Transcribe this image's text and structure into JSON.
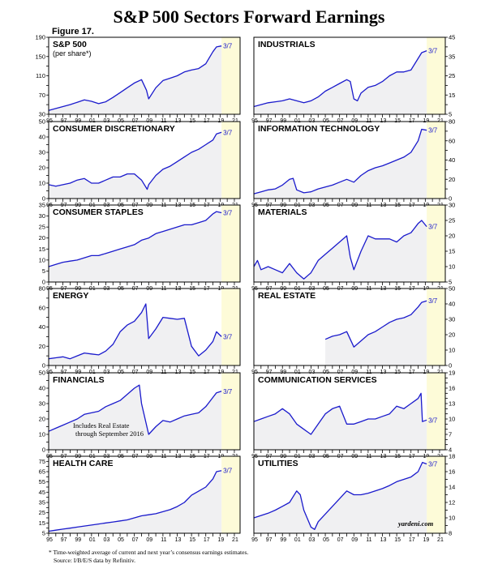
{
  "title": "S&P 500 Sectors Forward Earnings",
  "figure": "Figure 17.",
  "footnote": "* Time-weighted average of current and next year’s consensus earnings estimates.",
  "source": "Source: I/B/E/S data by Refinitiv.",
  "credit": "yardeni.com",
  "colors": {
    "line": "#1a1acc",
    "fill": "#f0f0f2",
    "forecast_band": "#fdfbd8"
  },
  "chart_data": [
    {
      "type": "line",
      "title": "S&P 500",
      "subtitle": "(per share*)",
      "end_label": "3/7",
      "axis_side": "left",
      "ylim": [
        30,
        190
      ],
      "yticks": [
        30,
        50,
        70,
        90,
        110,
        130,
        150,
        170,
        190
      ],
      "ytick_labels": [
        "30",
        "",
        "70",
        "",
        "110",
        "",
        "150",
        "",
        "190"
      ],
      "x": [
        1995,
        1996,
        1997,
        1998,
        1999,
        2000,
        2001,
        2002,
        2003,
        2004,
        2005,
        2006,
        2007,
        2008,
        2008.7,
        2009,
        2010,
        2011,
        2012,
        2013,
        2014,
        2015,
        2016,
        2017,
        2018,
        2018.5,
        2019.2
      ],
      "values": [
        38,
        42,
        46,
        50,
        55,
        60,
        57,
        52,
        56,
        65,
        75,
        85,
        95,
        102,
        80,
        62,
        85,
        100,
        105,
        110,
        118,
        122,
        125,
        135,
        160,
        170,
        172
      ]
    },
    {
      "type": "line",
      "title": "INDUSTRIALS",
      "end_label": "3/7",
      "axis_side": "right",
      "ylim": [
        5,
        45
      ],
      "yticks": [
        5,
        10,
        15,
        20,
        25,
        30,
        35,
        40,
        45
      ],
      "ytick_labels": [
        "5",
        "",
        "15",
        "",
        "25",
        "",
        "35",
        "",
        "45"
      ],
      "x": [
        1995,
        1996,
        1997,
        1998,
        1999,
        2000,
        2001,
        2002,
        2003,
        2004,
        2005,
        2006,
        2007,
        2008,
        2008.5,
        2009,
        2009.5,
        2010,
        2011,
        2012,
        2013,
        2014,
        2015,
        2016,
        2017,
        2018,
        2018.5,
        2019.2
      ],
      "values": [
        9,
        10,
        11,
        11.5,
        12,
        13,
        12,
        11,
        12,
        14,
        17,
        19,
        21,
        23,
        22,
        13,
        12,
        16,
        19,
        20,
        22,
        25,
        27,
        27,
        28,
        34,
        37,
        38
      ]
    },
    {
      "type": "line",
      "title": "CONSUMER DISCRETIONARY",
      "end_label": "3/7",
      "axis_side": "left",
      "ylim": [
        0,
        50
      ],
      "yticks": [
        0,
        5,
        10,
        15,
        20,
        25,
        30,
        35,
        40,
        45,
        50
      ],
      "ytick_labels": [
        "0",
        "",
        "10",
        "",
        "20",
        "",
        "30",
        "",
        "40",
        "",
        "50"
      ],
      "x": [
        1995,
        1996,
        1997,
        1998,
        1999,
        2000,
        2001,
        2002,
        2003,
        2004,
        2005,
        2006,
        2007,
        2008,
        2008.8,
        2009,
        2010,
        2011,
        2012,
        2013,
        2014,
        2015,
        2016,
        2017,
        2018,
        2018.5,
        2019.2
      ],
      "values": [
        9,
        8,
        9,
        10,
        12,
        13,
        10,
        10,
        12,
        14,
        14,
        16,
        16,
        12,
        6,
        9,
        15,
        19,
        21,
        24,
        27,
        30,
        32,
        35,
        38,
        42,
        43
      ]
    },
    {
      "type": "line",
      "title": "INFORMATION TECHNOLOGY",
      "end_label": "3/7",
      "axis_side": "right",
      "ylim": [
        0,
        80
      ],
      "yticks": [
        0,
        10,
        20,
        30,
        40,
        50,
        60,
        70,
        80
      ],
      "ytick_labels": [
        "0",
        "",
        "20",
        "",
        "40",
        "",
        "60",
        "",
        "80"
      ],
      "x": [
        1995,
        1996,
        1997,
        1998,
        1999,
        2000,
        2000.5,
        2001,
        2002,
        2003,
        2004,
        2005,
        2006,
        2007,
        2008,
        2009,
        2010,
        2011,
        2012,
        2013,
        2014,
        2015,
        2016,
        2017,
        2018,
        2018.5,
        2019.2
      ],
      "values": [
        5,
        7,
        9,
        10,
        14,
        20,
        21,
        9,
        6,
        7,
        10,
        12,
        14,
        17,
        20,
        17,
        24,
        29,
        32,
        34,
        37,
        40,
        43,
        48,
        60,
        72,
        71
      ]
    },
    {
      "type": "line",
      "title": "CONSUMER STAPLES",
      "end_label": "3/7",
      "axis_side": "left",
      "ylim": [
        0,
        35
      ],
      "yticks": [
        0,
        5,
        10,
        15,
        20,
        25,
        30,
        35
      ],
      "ytick_labels": [
        "0",
        "5",
        "10",
        "15",
        "20",
        "25",
        "30",
        "35"
      ],
      "x": [
        1995,
        1996,
        1997,
        1998,
        1999,
        2000,
        2001,
        2002,
        2003,
        2004,
        2005,
        2006,
        2007,
        2008,
        2009,
        2010,
        2011,
        2012,
        2013,
        2014,
        2015,
        2016,
        2017,
        2018,
        2018.5,
        2019.2
      ],
      "values": [
        7,
        8,
        9,
        9.5,
        10,
        11,
        12,
        12,
        13,
        14,
        15,
        16,
        17,
        19,
        20,
        22,
        23,
        24,
        25,
        26,
        26,
        27,
        28,
        31,
        32,
        31.5
      ]
    },
    {
      "type": "line",
      "title": "MATERIALS",
      "end_label": "3/7",
      "axis_side": "right",
      "ylim": [
        5,
        30
      ],
      "yticks": [
        5,
        10,
        15,
        20,
        25,
        30
      ],
      "ytick_labels": [
        "5",
        "10",
        "15",
        "20",
        "25",
        "30"
      ],
      "x": [
        1995,
        1995.5,
        1996,
        1997,
        1998,
        1999,
        2000,
        2001,
        2002,
        2003,
        2004,
        2005,
        2006,
        2007,
        2008,
        2008.5,
        2009,
        2010,
        2011,
        2012,
        2013,
        2014,
        2015,
        2016,
        2017,
        2018,
        2018.5,
        2019.2
      ],
      "values": [
        10,
        12,
        9,
        10,
        9,
        8,
        11,
        8,
        6,
        8,
        12,
        14,
        16,
        18,
        20,
        13,
        9,
        15,
        20,
        19,
        19,
        19,
        18,
        20,
        21,
        24,
        25,
        23
      ]
    },
    {
      "type": "line",
      "title": "ENERGY",
      "end_label": "3/7",
      "axis_side": "left",
      "ylim": [
        0,
        80
      ],
      "yticks": [
        0,
        10,
        20,
        30,
        40,
        50,
        60,
        70,
        80
      ],
      "ytick_labels": [
        "0",
        "",
        "20",
        "",
        "40",
        "",
        "60",
        "",
        "80"
      ],
      "x": [
        1995,
        1996,
        1997,
        1998,
        1999,
        2000,
        2001,
        2002,
        2003,
        2004,
        2005,
        2006,
        2007,
        2008,
        2008.6,
        2009,
        2010,
        2011,
        2012,
        2013,
        2014,
        2015,
        2016,
        2017,
        2018,
        2018.5,
        2019.2
      ],
      "values": [
        7,
        8,
        9,
        7,
        10,
        13,
        12,
        11,
        15,
        22,
        35,
        42,
        46,
        55,
        64,
        28,
        38,
        50,
        49,
        48,
        49,
        20,
        10,
        16,
        25,
        35,
        30
      ]
    },
    {
      "type": "line",
      "title": "REAL ESTATE",
      "end_label": "3/7",
      "axis_side": "right",
      "ylim": [
        0,
        50
      ],
      "yticks": [
        0,
        10,
        20,
        30,
        40,
        50
      ],
      "ytick_labels": [
        "0",
        "10",
        "20",
        "30",
        "40",
        "50"
      ],
      "x": [
        2005,
        2006,
        2007,
        2008,
        2009,
        2010,
        2011,
        2012,
        2013,
        2014,
        2015,
        2016,
        2017,
        2018,
        2018.5,
        2019.2
      ],
      "values": [
        17,
        19,
        20,
        22,
        12,
        16,
        20,
        22,
        25,
        28,
        30,
        31,
        33,
        38,
        41,
        42
      ]
    },
    {
      "type": "line",
      "title": "FINANCIALS",
      "end_label": "3/7",
      "axis_side": "left",
      "annotation": [
        "Includes Real Estate",
        "through September 2016"
      ],
      "ylim": [
        0,
        50
      ],
      "yticks": [
        0,
        5,
        10,
        15,
        20,
        25,
        30,
        35,
        40,
        45,
        50
      ],
      "ytick_labels": [
        "0",
        "",
        "10",
        "",
        "20",
        "",
        "30",
        "",
        "40",
        "",
        "50"
      ],
      "x": [
        1995,
        1996,
        1997,
        1998,
        1999,
        2000,
        2001,
        2002,
        2003,
        2004,
        2005,
        2006,
        2007,
        2007.7,
        2008,
        2009,
        2010,
        2011,
        2012,
        2013,
        2014,
        2015,
        2016,
        2017,
        2018,
        2018.5,
        2019.2
      ],
      "values": [
        12,
        14,
        16,
        18,
        20,
        23,
        24,
        25,
        28,
        30,
        32,
        36,
        40,
        42,
        30,
        10,
        15,
        19,
        18,
        20,
        22,
        23,
        24,
        28,
        34,
        37,
        38
      ]
    },
    {
      "type": "line",
      "title": "COMMUNICATION SERVICES",
      "end_label": "3/7",
      "axis_side": "right",
      "ylim": [
        4,
        19
      ],
      "yticks": [
        4,
        5,
        6,
        7,
        8,
        9,
        10,
        11,
        12,
        13,
        14,
        15,
        16,
        17,
        18,
        19
      ],
      "ytick_labels": [
        "4",
        "",
        "",
        "7",
        "",
        "",
        "10",
        "",
        "",
        "13",
        "",
        "",
        "16",
        "",
        "",
        "19"
      ],
      "x": [
        1995,
        1996,
        1997,
        1998,
        1999,
        2000,
        2001,
        2002,
        2003,
        2004,
        2005,
        2006,
        2007,
        2008,
        2009,
        2010,
        2011,
        2012,
        2013,
        2014,
        2015,
        2016,
        2017,
        2018,
        2018.4,
        2018.6,
        2019.2
      ],
      "values": [
        9.5,
        10,
        10.5,
        11,
        12,
        11,
        9,
        8,
        7,
        9,
        11,
        12,
        12.5,
        9,
        9,
        9.5,
        10,
        10,
        10.5,
        11,
        12.5,
        12,
        13,
        14,
        15,
        9.5,
        9.8
      ]
    },
    {
      "type": "line",
      "title": "HEALTH CARE",
      "end_label": "3/7",
      "axis_side": "left",
      "ylim": [
        5,
        80
      ],
      "yticks": [
        5,
        10,
        15,
        20,
        25,
        30,
        35,
        40,
        45,
        50,
        55,
        60,
        65,
        70,
        75,
        80
      ],
      "ytick_labels": [
        "5",
        "",
        "15",
        "",
        "25",
        "",
        "35",
        "",
        "45",
        "",
        "55",
        "",
        "65",
        "",
        "75",
        ""
      ],
      "x": [
        1995,
        1996,
        1997,
        1998,
        1999,
        2000,
        2001,
        2002,
        2003,
        2004,
        2005,
        2006,
        2007,
        2008,
        2009,
        2010,
        2011,
        2012,
        2013,
        2014,
        2015,
        2016,
        2017,
        2018,
        2018.5,
        2019.2
      ],
      "values": [
        7,
        8,
        9,
        10,
        11,
        12,
        13,
        14,
        15,
        16,
        17,
        18,
        20,
        22,
        23,
        24,
        26,
        28,
        31,
        35,
        42,
        46,
        50,
        58,
        65,
        66
      ]
    },
    {
      "type": "line",
      "title": "UTILITIES",
      "end_label": "3/7",
      "axis_side": "right",
      "ylim": [
        8,
        18
      ],
      "yticks": [
        8,
        9,
        10,
        11,
        12,
        13,
        14,
        15,
        16,
        17,
        18
      ],
      "ytick_labels": [
        "8",
        "",
        "10",
        "",
        "12",
        "",
        "14",
        "",
        "16",
        "",
        "18"
      ],
      "x": [
        1995,
        1996,
        1997,
        1998,
        1999,
        2000,
        2001,
        2001.5,
        2002,
        2003,
        2003.5,
        2004,
        2005,
        2006,
        2007,
        2008,
        2009,
        2010,
        2011,
        2012,
        2013,
        2014,
        2015,
        2016,
        2017,
        2018,
        2018.6,
        2019.2
      ],
      "values": [
        10,
        10.3,
        10.6,
        11,
        11.5,
        12,
        13.5,
        13,
        11,
        8.8,
        8.5,
        9.5,
        10.5,
        11.5,
        12.5,
        13.5,
        13,
        13,
        13.2,
        13.5,
        13.8,
        14.2,
        14.7,
        15,
        15.3,
        16,
        17.2,
        17
      ]
    }
  ],
  "x_tick_labels": [
    "95",
    "97",
    "99",
    "01",
    "03",
    "05",
    "07",
    "09",
    "11",
    "13",
    "15",
    "17",
    "19",
    "21"
  ]
}
